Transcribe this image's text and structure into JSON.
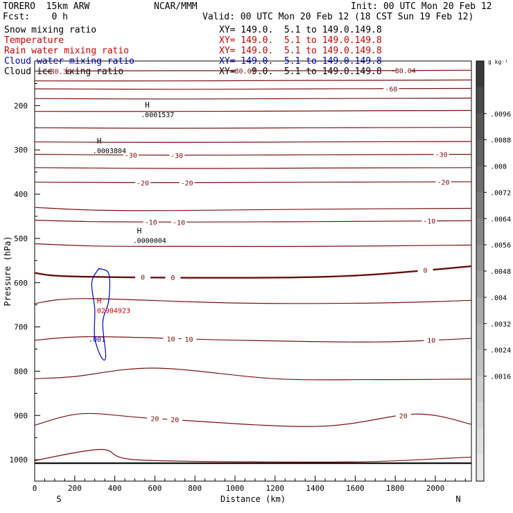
{
  "header": {
    "model": "TORERO  15km ARW",
    "org": "NCAR/MMM",
    "init": "Init: 00 UTC Mon 20 Feb 12",
    "fcst": "Fcst:    0 h",
    "valid": "Valid: 00 UTC Mon 20 Feb 12 (18 CST Sun 19 Feb 12)"
  },
  "legend": [
    {
      "name": "Snow mixing ratio",
      "xy": "XY= 149.0.  5.1 to 149.0.149.8",
      "color": "#000000"
    },
    {
      "name": "Temperature",
      "xy": "XY= 149.0.  5.1 to 149.0.149.8",
      "color": "#cc0000"
    },
    {
      "name": "Rain water mixing ratio",
      "xy": "XY= 149.0.  5.1 to 149.0.149.8",
      "color": "#cc0000"
    },
    {
      "name": "Cloud water mixing ratio",
      "xy": "XY= 149.0.  5.1 to 149.0.149.8",
      "color": "#0000cc"
    },
    {
      "name": "Cloud ice mixing ratio",
      "xy": "XY= 149.0.  5.1 to 149.0.149.8",
      "color": "#000000"
    }
  ],
  "chart_data": {
    "type": "line",
    "xlabel": "Distance (km)",
    "ylabel": "Pressure (hPa)",
    "xlim": [
      0,
      2180
    ],
    "ylim": [
      1050,
      110
    ],
    "xticks": [
      0,
      200,
      400,
      600,
      800,
      1000,
      1200,
      1400,
      1600,
      1800,
      2000
    ],
    "yticks": [
      200,
      300,
      400,
      500,
      600,
      700,
      800,
      900,
      1000
    ],
    "x_endpoints": [
      "S",
      "N"
    ],
    "contour_color": "#7a1010",
    "temperature_contours": [
      {
        "x": [
          0,
          700,
          1500,
          2180
        ],
        "p": [
          122,
          121,
          121,
          120
        ],
        "labels": [
          {
            "text": "-80.36",
            "x": 120
          },
          {
            "text": "-80.07",
            "x": 1040
          },
          {
            "text": "-80.04",
            "x": 1840
          }
        ]
      },
      {
        "x": [
          0,
          700,
          1400,
          2180
        ],
        "p": [
          144,
          144,
          143,
          142
        ],
        "labels": []
      },
      {
        "x": [
          0,
          700,
          1400,
          2180
        ],
        "p": [
          162,
          163,
          162,
          161
        ],
        "labels": [
          {
            "text": "-60",
            "x": 1780
          }
        ]
      },
      {
        "x": [
          0,
          700,
          1400,
          2180
        ],
        "p": [
          184,
          185,
          184,
          183
        ],
        "labels": []
      },
      {
        "x": [
          0,
          700,
          1400,
          2180
        ],
        "p": [
          213,
          213,
          212,
          211
        ],
        "labels": []
      },
      {
        "x": [
          0,
          700,
          1400,
          2180
        ],
        "p": [
          250,
          251,
          250,
          249
        ],
        "labels": []
      },
      {
        "x": [
          0,
          700,
          1400,
          2180
        ],
        "p": [
          282,
          283,
          282,
          281
        ],
        "labels": []
      },
      {
        "x": [
          0,
          700,
          1400,
          2180
        ],
        "p": [
          310,
          312,
          311,
          310
        ],
        "labels": [
          {
            "text": "-30",
            "x": 480
          },
          {
            "text": "-30",
            "x": 710
          },
          {
            "text": "-30",
            "x": 2030
          }
        ]
      },
      {
        "x": [
          0,
          700,
          1400,
          2180
        ],
        "p": [
          340,
          342,
          341,
          340
        ],
        "labels": []
      },
      {
        "x": [
          0,
          700,
          1400,
          2180
        ],
        "p": [
          373,
          374,
          373,
          372
        ],
        "labels": [
          {
            "text": "-20",
            "x": 540
          },
          {
            "text": "-20",
            "x": 760
          },
          {
            "text": "-20",
            "x": 2040
          }
        ]
      },
      {
        "x": [
          0,
          300,
          700,
          1400,
          2180
        ],
        "p": [
          430,
          436,
          437,
          434,
          432
        ],
        "labels": []
      },
      {
        "x": [
          0,
          300,
          700,
          1400,
          2180
        ],
        "p": [
          459,
          462,
          463,
          462,
          460
        ],
        "labels": [
          {
            "text": "-10",
            "x": 580
          },
          {
            "text": "-10",
            "x": 720
          },
          {
            "text": "-10",
            "x": 1970
          }
        ]
      },
      {
        "x": [
          0,
          300,
          700,
          1400,
          2180
        ],
        "p": [
          512,
          517,
          518,
          518,
          515
        ],
        "labels": []
      },
      {
        "x": [
          0,
          200,
          1000,
          1600,
          2180
        ],
        "p": [
          578,
          586,
          589,
          584,
          563
        ],
        "labels": [
          {
            "text": "0",
            "x": 540
          },
          {
            "text": "0",
            "x": 690
          },
          {
            "text": "0",
            "x": 1950
          }
        ]
      },
      {
        "x": [
          0,
          250,
          1000,
          1700,
          2180
        ],
        "p": [
          647,
          636,
          646,
          646,
          640
        ],
        "labels": []
      },
      {
        "x": [
          0,
          300,
          1000,
          1700,
          2180
        ],
        "p": [
          730,
          722,
          730,
          734,
          726
        ],
        "labels": [
          {
            "text": "10",
            "x": 680
          },
          {
            "text": "10",
            "x": 770
          },
          {
            "text": "10",
            "x": 1980
          }
        ]
      },
      {
        "x": [
          0,
          200,
          600,
          1200,
          1700,
          2180
        ],
        "p": [
          817,
          812,
          793,
          817,
          819,
          818
        ],
        "labels": []
      },
      {
        "x": [
          0,
          240,
          600,
          1400,
          1900,
          2180
        ],
        "p": [
          922,
          896,
          907,
          925,
          897,
          920
        ],
        "labels": [
          {
            "text": "20",
            "x": 600
          },
          {
            "text": "20",
            "x": 700
          },
          {
            "text": "20",
            "x": 1840
          }
        ]
      },
      {
        "x": [
          0,
          330,
          500,
          1200,
          1700,
          2180
        ],
        "p": [
          1002,
          977,
          1000,
          1005,
          1004,
          994
        ],
        "labels": []
      }
    ],
    "freezing_level": {
      "x": [
        0,
        200,
        1000,
        1600,
        2180
      ],
      "p": [
        578,
        586,
        589,
        584,
        563
      ]
    },
    "terrain": {
      "x": [
        0,
        2180
      ],
      "p": [
        1008,
        1008
      ]
    },
    "cloud_water_contour": {
      "x": [
        320,
        370,
        370,
        340,
        355,
        335,
        300,
        300,
        285,
        320
      ],
      "p": [
        568,
        580,
        640,
        690,
        765,
        770,
        725,
        660,
        600,
        568
      ],
      "label": ".001",
      "label_x": 270,
      "label_p": 727
    },
    "max_labels": [
      {
        "text": ".0001537",
        "x": 530,
        "p": 220,
        "color": "#000000"
      },
      {
        "text": ".0003804",
        "x": 290,
        "p": 301,
        "color": "#000000"
      },
      {
        "text": ".0000004",
        "x": 490,
        "p": 504,
        "color": "#000000"
      },
      {
        "text": ".02904923",
        "x": 290,
        "p": 662,
        "color": "#cc0000"
      }
    ],
    "colorbar": {
      "unit": "g kg⁻¹",
      "tick_labels": [
        ".0096",
        ".0088",
        ".008",
        ".0072",
        ".0064",
        ".0056",
        ".0048",
        ".004",
        ".0032",
        ".0024",
        ".0016"
      ],
      "gray_steps": [
        "#3a3a3a",
        "#4a4a4a",
        "#565656",
        "#636363",
        "#6e6e6e",
        "#7a7a7a",
        "#868686",
        "#929292",
        "#9e9e9e",
        "#aaaaaa",
        "#b6b6b6",
        "#c2c2c2",
        "#cdcdcd",
        "#d7d7d7",
        "#e0e0e0",
        "#e9e9e9"
      ]
    }
  }
}
